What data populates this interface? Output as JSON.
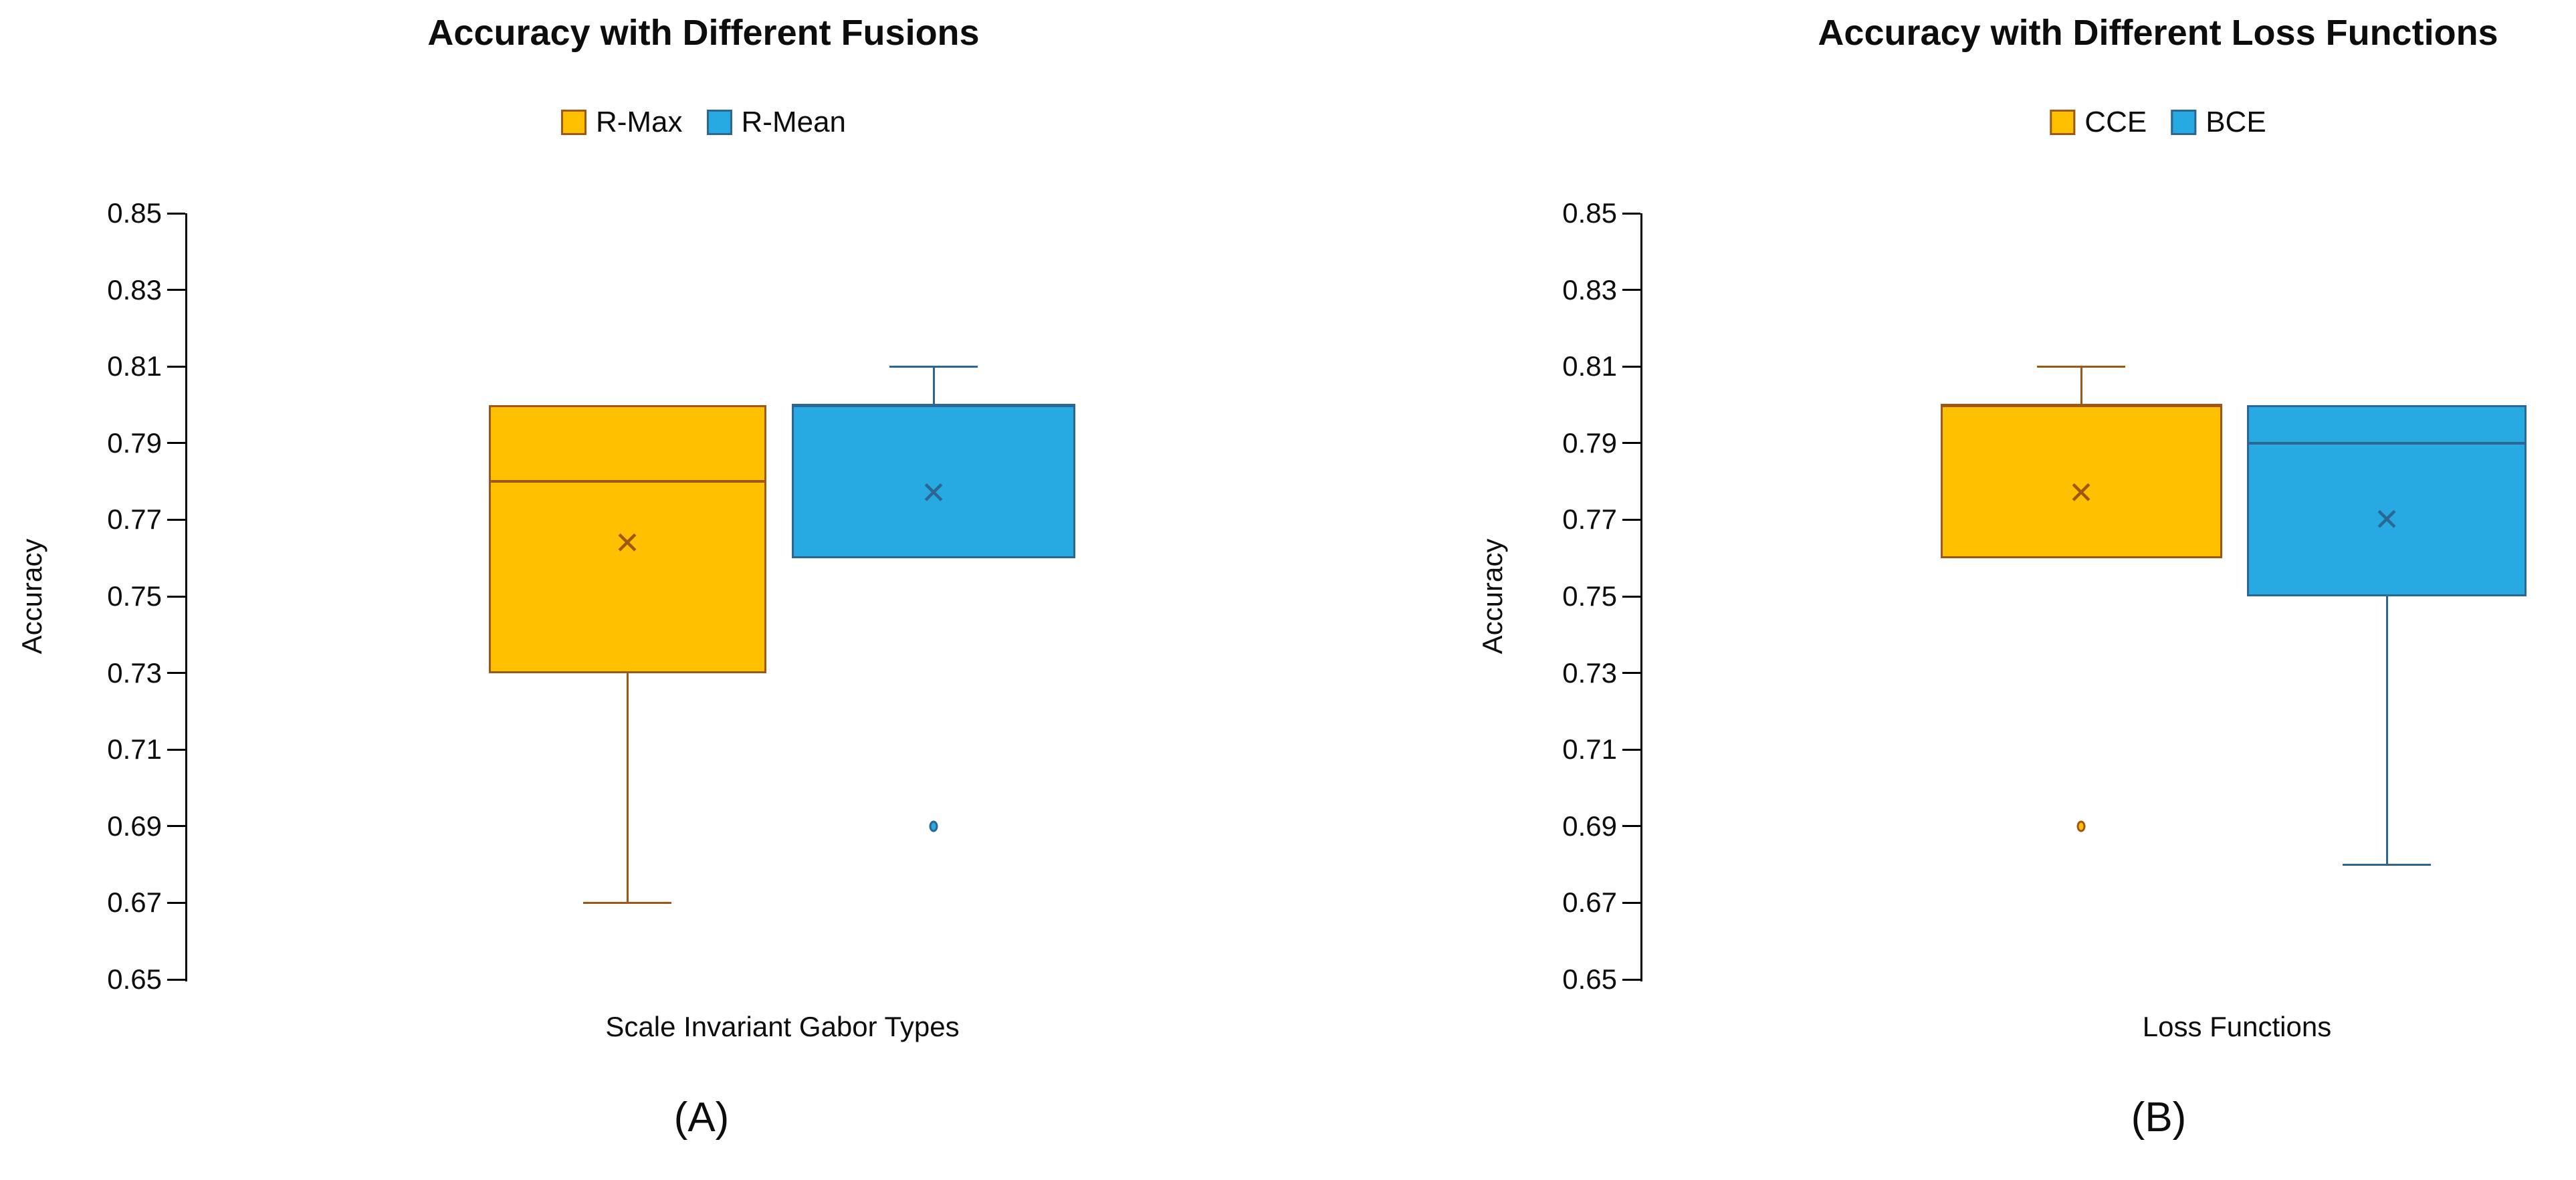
{
  "figure": {
    "background": "#FFFFFF"
  },
  "chart_data": [
    {
      "type": "box",
      "title": "Accuracy with Different Fusions",
      "caption": "(A)",
      "x_axis": {
        "label": "Scale Invariant Gabor Types"
      },
      "y_axis": {
        "label": "Accuracy",
        "min": 0.65,
        "max": 0.85,
        "tick_step": 0.02,
        "ticks": [
          "0.85",
          "0.83",
          "0.81",
          "0.79",
          "0.77",
          "0.75",
          "0.73",
          "0.71",
          "0.69",
          "0.67",
          "0.65"
        ]
      },
      "grid": false,
      "legend_position": "top-center",
      "legend": [
        {
          "label": "R-Max",
          "fill": "#FFC000",
          "accent": "#9E5715"
        },
        {
          "label": "R-Mean",
          "fill": "#27A9E1",
          "accent": "#2E6693"
        }
      ],
      "series": [
        {
          "name": "R-Max",
          "fill": "#FFC000",
          "accent": "#9E5715",
          "min": 0.67,
          "q1": 0.73,
          "median": 0.78,
          "q3": 0.8,
          "max": 0.8,
          "mean": 0.764,
          "outliers": []
        },
        {
          "name": "R-Mean",
          "fill": "#27A9E1",
          "accent": "#2E6693",
          "min": 0.76,
          "q1": 0.76,
          "median": 0.8,
          "q3": 0.8,
          "max": 0.81,
          "mean": 0.777,
          "outliers": [
            0.69
          ]
        }
      ]
    },
    {
      "type": "box",
      "title": "Accuracy with Different Loss Functions",
      "caption": "(B)",
      "x_axis": {
        "label": "Loss Functions"
      },
      "y_axis": {
        "label": "Accuracy",
        "min": 0.65,
        "max": 0.85,
        "tick_step": 0.02,
        "ticks": [
          "0.85",
          "0.83",
          "0.81",
          "0.79",
          "0.77",
          "0.75",
          "0.73",
          "0.71",
          "0.69",
          "0.67",
          "0.65"
        ]
      },
      "grid": false,
      "legend_position": "top-center",
      "legend": [
        {
          "label": "CCE",
          "fill": "#FFC000",
          "accent": "#9E5715"
        },
        {
          "label": "BCE",
          "fill": "#27A9E1",
          "accent": "#2E6693"
        }
      ],
      "series": [
        {
          "name": "CCE",
          "fill": "#FFC000",
          "accent": "#9E5715",
          "min": 0.76,
          "q1": 0.76,
          "median": 0.8,
          "q3": 0.8,
          "max": 0.81,
          "mean": 0.777,
          "outliers": [
            0.69
          ]
        },
        {
          "name": "BCE",
          "fill": "#27A9E1",
          "accent": "#2E6693",
          "min": 0.68,
          "q1": 0.75,
          "median": 0.79,
          "q3": 0.8,
          "max": 0.8,
          "mean": 0.77,
          "outliers": []
        }
      ]
    }
  ]
}
